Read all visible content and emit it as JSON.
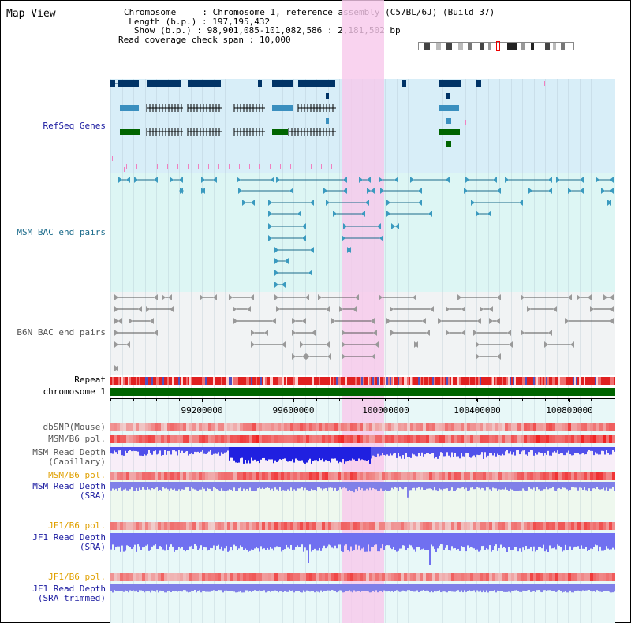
{
  "title": "Map View",
  "info": {
    "chromosome_key": "Chromosome",
    "chromosome_val": "Chromosome 1, reference assembly (C57BL/6J) (Build 37)",
    "length_key": "Length (b.p.)",
    "length_val": "197,195,432",
    "show_key": "Show (b.p.)",
    "show_val": "98,901,085-101,082,586 : 2,181,502 bp",
    "span_key": "Read coverage check span",
    "span_val": "10,000"
  },
  "tracks": {
    "refseq": "RefSeq Genes",
    "msm_bac": "MSM BAC end pairs",
    "b6n_bac": "B6N BAC end pairs",
    "repeat": "Repeat",
    "chromosome": "chromosome 1",
    "dbsnp": "dbSNP(Mouse)",
    "msm_b6_pol_1": "MSM/B6 pol.",
    "msm_read_depth_cap": "MSM Read Depth\n(Capillary)",
    "msm_b6_pol_2": "MSM/B6 pol.",
    "msm_read_depth_sra": "MSM Read Depth\n(SRA)",
    "jf1_b6_pol_1": "JF1/B6 pol.",
    "jf1_read_depth_sra": "JF1 Read Depth\n(SRA)",
    "jf1_b6_pol_2": "JF1/B6 pol.",
    "jf1_read_depth_trim": "JF1 Read Depth\n(SRA trimmed)"
  },
  "axis": {
    "ticks": [
      "99200000",
      "99600000",
      "100000000",
      "100400000",
      "100800000"
    ]
  },
  "colors": {
    "refseq_bg": "#d8eef8",
    "msm_bg": "#ddf6f4",
    "b6n_bg": "#f1f3f4",
    "highlight": "#f8c8eb",
    "gene_dark": "#003366",
    "gene_mid": "#3a8fbf",
    "gene_green": "#006400",
    "chrom_green": "#006400",
    "depth_blue": "#2222ee",
    "depth_light": "#7a7af0",
    "label_blue": "#1a1aa0",
    "label_orange": "#e0a000"
  }
}
